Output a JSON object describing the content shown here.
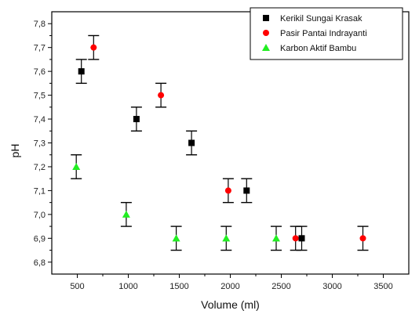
{
  "chart_data": {
    "type": "scatter",
    "title": "",
    "xlabel": "Volume (ml)",
    "ylabel": "pH",
    "xlim": [
      250,
      3750
    ],
    "ylim": [
      6.75,
      7.85
    ],
    "x_ticks": [
      500,
      1000,
      1500,
      2000,
      2500,
      3000,
      3500
    ],
    "x_tick_labels": [
      "500",
      "1000",
      "1500",
      "2000",
      "2500",
      "3000",
      "3500"
    ],
    "y_ticks": [
      6.8,
      6.9,
      7.0,
      7.1,
      7.2,
      7.3,
      7.4,
      7.5,
      7.6,
      7.7,
      7.8
    ],
    "y_tick_labels": [
      "6,8",
      "6,9",
      "7,0",
      "7,1",
      "7,2",
      "7,3",
      "7,4",
      "7,5",
      "7,6",
      "7,7",
      "7,8"
    ],
    "grid": false,
    "legend_position": "top-right",
    "series": [
      {
        "name": "Kerikil Sungai Krasak",
        "marker": "square",
        "color": "#000000",
        "x": [
          540,
          1080,
          1620,
          2160,
          2700
        ],
        "y": [
          7.6,
          7.4,
          7.3,
          7.1,
          6.9
        ],
        "error": [
          0.05,
          0.05,
          0.05,
          0.05,
          0.05
        ]
      },
      {
        "name": "Pasir Pantai Indrayanti",
        "marker": "circle",
        "color": "#ff0000",
        "x": [
          660,
          1320,
          1980,
          2640,
          3300
        ],
        "y": [
          7.7,
          7.5,
          7.1,
          6.9,
          6.9
        ],
        "error": [
          0.05,
          0.05,
          0.05,
          0.05,
          0.05
        ]
      },
      {
        "name": "Karbon Aktif Bambu",
        "marker": "triangle",
        "color": "#22ee22",
        "x": [
          490,
          980,
          1470,
          1960,
          2450
        ],
        "y": [
          7.2,
          7.0,
          6.9,
          6.9,
          6.9
        ],
        "error": [
          0.05,
          0.05,
          0.05,
          0.05,
          0.05
        ]
      }
    ]
  }
}
